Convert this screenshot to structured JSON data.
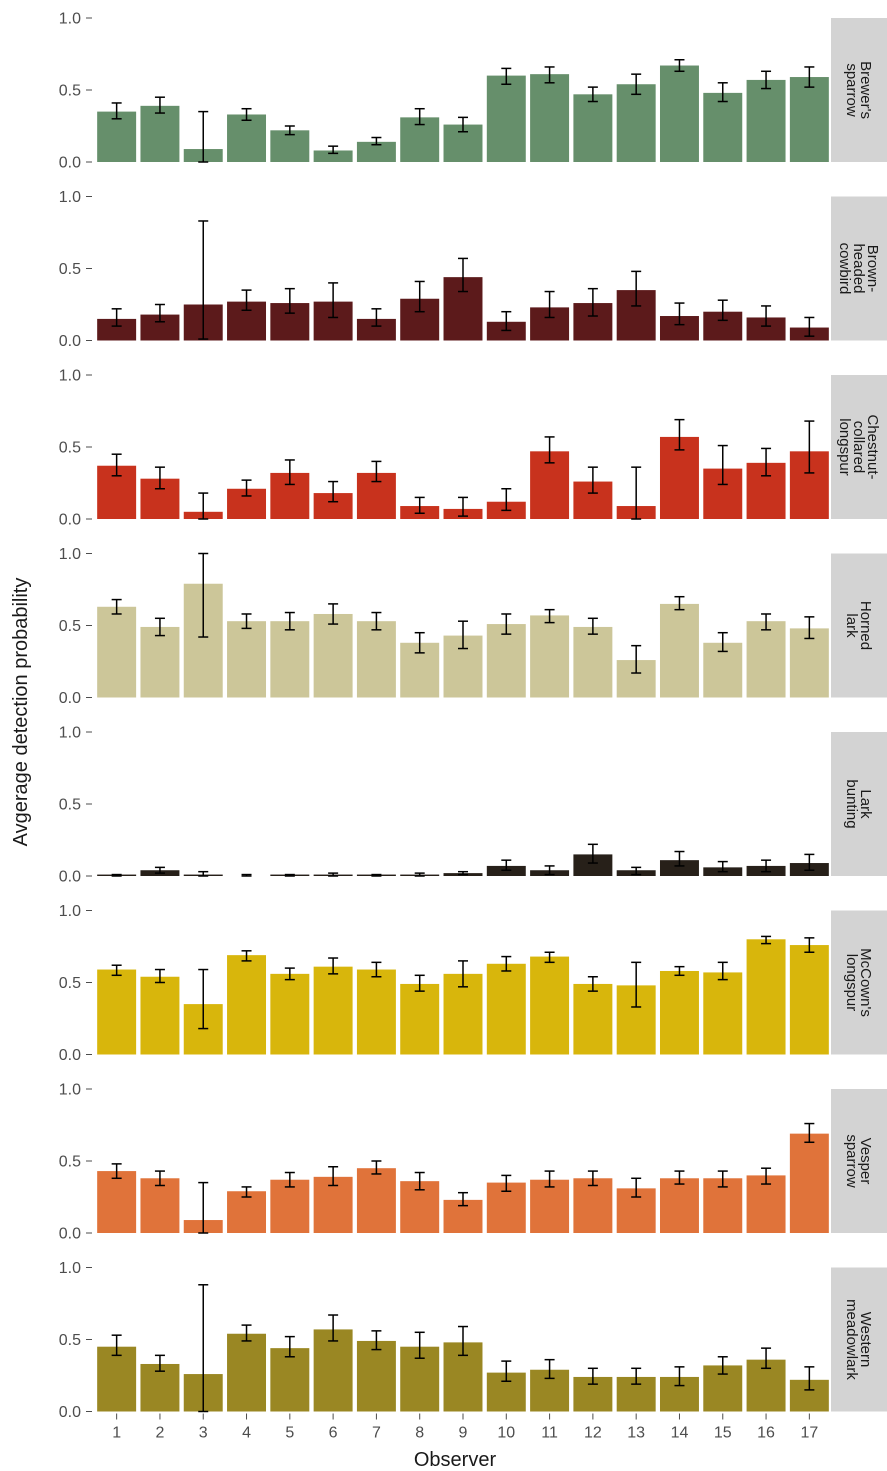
{
  "chart_data": {
    "type": "bar",
    "layout": "faceted-rows",
    "xlabel": "Observer",
    "ylabel": "Avgerage detection probability",
    "categories": [
      "1",
      "2",
      "3",
      "4",
      "5",
      "6",
      "7",
      "8",
      "9",
      "10",
      "11",
      "12",
      "13",
      "14",
      "15",
      "16",
      "17"
    ],
    "ylim": [
      0,
      1
    ],
    "yticks": [
      "0.0",
      "0.5",
      "1.0"
    ],
    "grid": false,
    "error_bars": true,
    "facets": [
      {
        "strip": [
          "Brewer's",
          "sparrow"
        ],
        "color": "#668f6b",
        "values": [
          0.35,
          0.39,
          0.09,
          0.33,
          0.22,
          0.08,
          0.14,
          0.31,
          0.26,
          0.6,
          0.61,
          0.47,
          0.54,
          0.67,
          0.48,
          0.57,
          0.59
        ],
        "lower": [
          0.3,
          0.34,
          0.0,
          0.29,
          0.19,
          0.06,
          0.12,
          0.26,
          0.21,
          0.54,
          0.55,
          0.42,
          0.47,
          0.63,
          0.42,
          0.51,
          0.52
        ],
        "upper": [
          0.41,
          0.45,
          0.35,
          0.37,
          0.25,
          0.11,
          0.17,
          0.37,
          0.31,
          0.65,
          0.66,
          0.52,
          0.61,
          0.71,
          0.55,
          0.63,
          0.66
        ]
      },
      {
        "strip": [
          "Brown-",
          "headed",
          "cowbird"
        ],
        "color": "#5c1a1b",
        "values": [
          0.15,
          0.18,
          0.25,
          0.27,
          0.26,
          0.27,
          0.15,
          0.29,
          0.44,
          0.13,
          0.23,
          0.26,
          0.35,
          0.17,
          0.2,
          0.16,
          0.09
        ],
        "lower": [
          0.1,
          0.13,
          0.01,
          0.21,
          0.19,
          0.16,
          0.1,
          0.2,
          0.34,
          0.07,
          0.16,
          0.17,
          0.24,
          0.11,
          0.14,
          0.1,
          0.03
        ],
        "upper": [
          0.22,
          0.25,
          0.83,
          0.35,
          0.36,
          0.4,
          0.22,
          0.41,
          0.57,
          0.2,
          0.34,
          0.36,
          0.48,
          0.26,
          0.28,
          0.24,
          0.16
        ]
      },
      {
        "strip": [
          "Chestnut-",
          "collared",
          "longspur"
        ],
        "color": "#c8321d",
        "values": [
          0.37,
          0.28,
          0.05,
          0.21,
          0.32,
          0.18,
          0.32,
          0.09,
          0.07,
          0.12,
          0.47,
          0.26,
          0.09,
          0.57,
          0.35,
          0.39,
          0.47
        ],
        "lower": [
          0.3,
          0.21,
          0.0,
          0.16,
          0.24,
          0.12,
          0.26,
          0.04,
          0.02,
          0.06,
          0.39,
          0.18,
          0.0,
          0.48,
          0.24,
          0.3,
          0.32
        ],
        "upper": [
          0.45,
          0.36,
          0.18,
          0.27,
          0.41,
          0.26,
          0.4,
          0.15,
          0.15,
          0.21,
          0.57,
          0.36,
          0.36,
          0.69,
          0.51,
          0.49,
          0.68
        ]
      },
      {
        "strip": [
          "Horned",
          "lark"
        ],
        "color": "#ccc699",
        "values": [
          0.63,
          0.49,
          0.79,
          0.53,
          0.53,
          0.58,
          0.53,
          0.38,
          0.43,
          0.51,
          0.57,
          0.49,
          0.26,
          0.65,
          0.38,
          0.53,
          0.48
        ],
        "lower": [
          0.58,
          0.43,
          0.42,
          0.48,
          0.47,
          0.51,
          0.47,
          0.31,
          0.34,
          0.44,
          0.52,
          0.44,
          0.17,
          0.61,
          0.32,
          0.47,
          0.41
        ],
        "upper": [
          0.68,
          0.55,
          1.0,
          0.58,
          0.59,
          0.65,
          0.59,
          0.45,
          0.53,
          0.58,
          0.61,
          0.55,
          0.36,
          0.7,
          0.45,
          0.58,
          0.56
        ]
      },
      {
        "strip": [
          "Lark",
          "bunting"
        ],
        "color": "#272019",
        "values": [
          0.01,
          0.04,
          0.01,
          0.0,
          0.01,
          0.01,
          0.01,
          0.01,
          0.02,
          0.07,
          0.04,
          0.15,
          0.04,
          0.11,
          0.06,
          0.07,
          0.09
        ],
        "lower": [
          0.0,
          0.02,
          0.0,
          0.0,
          0.0,
          0.0,
          0.0,
          0.0,
          0.01,
          0.04,
          0.01,
          0.09,
          0.01,
          0.07,
          0.03,
          0.03,
          0.04
        ],
        "upper": [
          0.01,
          0.06,
          0.03,
          0.01,
          0.01,
          0.02,
          0.01,
          0.02,
          0.03,
          0.11,
          0.07,
          0.22,
          0.06,
          0.17,
          0.1,
          0.11,
          0.15
        ]
      },
      {
        "strip": [
          "McCown's",
          "longspur"
        ],
        "color": "#d8b60c",
        "values": [
          0.59,
          0.54,
          0.35,
          0.69,
          0.56,
          0.61,
          0.59,
          0.49,
          0.56,
          0.63,
          0.68,
          0.49,
          0.48,
          0.58,
          0.57,
          0.8,
          0.76
        ],
        "lower": [
          0.55,
          0.5,
          0.18,
          0.65,
          0.52,
          0.56,
          0.54,
          0.44,
          0.47,
          0.58,
          0.64,
          0.44,
          0.33,
          0.55,
          0.52,
          0.77,
          0.71
        ],
        "upper": [
          0.62,
          0.59,
          0.59,
          0.72,
          0.6,
          0.67,
          0.64,
          0.55,
          0.65,
          0.68,
          0.71,
          0.54,
          0.64,
          0.61,
          0.64,
          0.82,
          0.81
        ]
      },
      {
        "strip": [
          "Vesper",
          "sparrow"
        ],
        "color": "#e0733a",
        "values": [
          0.43,
          0.38,
          0.09,
          0.29,
          0.37,
          0.39,
          0.45,
          0.36,
          0.23,
          0.35,
          0.37,
          0.38,
          0.31,
          0.38,
          0.38,
          0.4,
          0.69
        ],
        "lower": [
          0.38,
          0.33,
          0.0,
          0.25,
          0.32,
          0.33,
          0.41,
          0.3,
          0.19,
          0.29,
          0.32,
          0.33,
          0.25,
          0.34,
          0.32,
          0.34,
          0.63
        ],
        "upper": [
          0.48,
          0.43,
          0.35,
          0.32,
          0.42,
          0.46,
          0.5,
          0.42,
          0.28,
          0.4,
          0.43,
          0.43,
          0.38,
          0.43,
          0.43,
          0.45,
          0.76
        ]
      },
      {
        "strip": [
          "Western",
          "meadowlark"
        ],
        "color": "#9a8723",
        "values": [
          0.45,
          0.33,
          0.26,
          0.54,
          0.44,
          0.57,
          0.49,
          0.45,
          0.48,
          0.27,
          0.29,
          0.24,
          0.24,
          0.24,
          0.32,
          0.36,
          0.22
        ],
        "lower": [
          0.39,
          0.28,
          0.0,
          0.49,
          0.38,
          0.49,
          0.43,
          0.37,
          0.39,
          0.21,
          0.23,
          0.19,
          0.19,
          0.18,
          0.26,
          0.3,
          0.15
        ],
        "upper": [
          0.53,
          0.39,
          0.88,
          0.6,
          0.52,
          0.67,
          0.56,
          0.55,
          0.59,
          0.35,
          0.36,
          0.3,
          0.3,
          0.31,
          0.38,
          0.44,
          0.31
        ]
      }
    ]
  }
}
